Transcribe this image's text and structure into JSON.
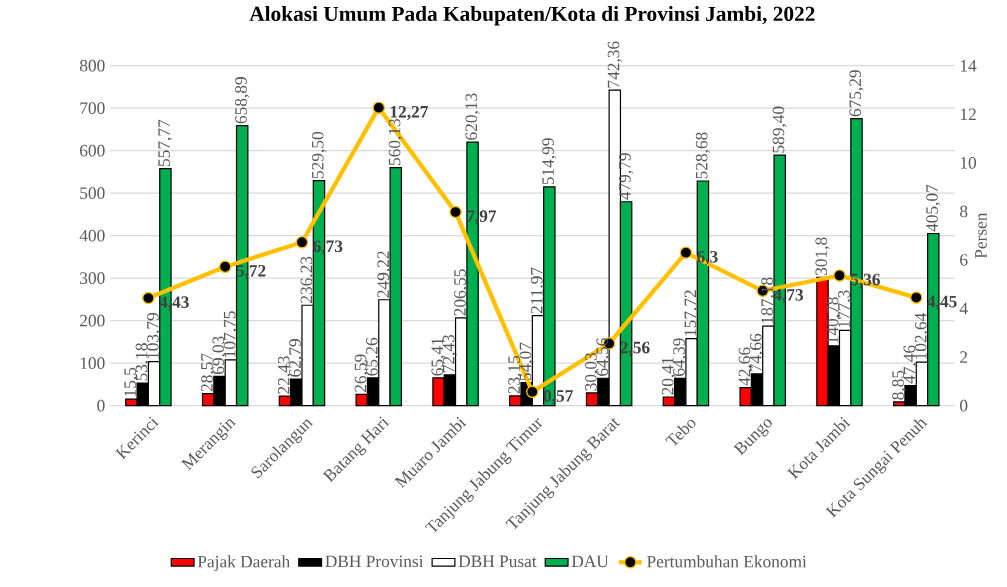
{
  "chart_data": {
    "type": "bar",
    "title": "Alokasi Umum Pada Kabupaten/Kota di Provinsi Jambi, 2022",
    "y2label": "Persen",
    "categories": [
      "Kerinci",
      "Merangin",
      "Sarolangun",
      "Batang Hari",
      "Muaro Jambi",
      "Tanjung Jabung Timur",
      "Tanjung Jabung Barat",
      "Tebo",
      "Bungo",
      "Kota Jambi",
      "Kota Sungai Penuh"
    ],
    "series": [
      {
        "name": "Pajak Daerah",
        "color": "#ff0000",
        "values": [
          15.5,
          28.57,
          22.43,
          26.59,
          65.41,
          23.15,
          30.03,
          20.41,
          42.66,
          301.8,
          8.85
        ],
        "value_labels": [
          "15,5",
          "28,57",
          "22,43",
          "26,59",
          "65,41",
          "23,15",
          "30,03",
          "20,41",
          "42,66",
          "301,8",
          "8,85"
        ]
      },
      {
        "name": "DBH Provinsi",
        "color": "#000000",
        "values": [
          53.18,
          69.03,
          62.79,
          65.26,
          72.43,
          54.07,
          64.56,
          64.39,
          74.66,
          140.78,
          47.46
        ],
        "value_labels": [
          "53,18",
          "69,03",
          "62,79",
          "65,26",
          "72,43",
          "54,07",
          "64,56",
          "64,39",
          "74,66",
          "140,78",
          "47,46"
        ]
      },
      {
        "name": "DBH Pusat",
        "color": "#ffffff",
        "values": [
          103.79,
          107.75,
          236.23,
          249.22,
          206.55,
          211.97,
          742.36,
          157.72,
          187.18,
          177.3,
          102.64
        ],
        "value_labels": [
          "103,79",
          "107,75",
          "236,23",
          "249,22",
          "206,55",
          "211,97",
          "742,36",
          "157,72",
          "187,18",
          "177,3",
          "102,64"
        ]
      },
      {
        "name": "DAU",
        "color": "#00b050",
        "values": [
          557.77,
          658.89,
          529.5,
          560.13,
          620.13,
          514.99,
          479.79,
          528.68,
          589.4,
          675.29,
          405.07
        ],
        "value_labels": [
          "557,77",
          "658,89",
          "529,50",
          "560,13",
          "620,13",
          "514,99",
          "479,79",
          "528,68",
          "589,40",
          "675,29",
          "405,07"
        ]
      },
      {
        "name": "Pertumbuhan Ekonomi",
        "type": "line",
        "axis": "y2",
        "marker": "circle",
        "color": "#ffc000",
        "values": [
          4.43,
          5.72,
          6.73,
          12.27,
          7.97,
          0.57,
          2.56,
          6.3,
          4.73,
          5.36,
          4.45
        ],
        "value_labels": [
          "4,43",
          "5,72",
          "6,73",
          "12,27",
          "7,97",
          "0,57",
          "2,56",
          "6,3",
          "4,73",
          "5,36",
          "4,45"
        ]
      }
    ],
    "ylim": [
      0,
      800
    ],
    "yticks": [
      0,
      100,
      200,
      300,
      400,
      500,
      600,
      700,
      800
    ],
    "y2lim": [
      0,
      14
    ],
    "y2ticks": [
      0,
      2,
      4,
      6,
      8,
      10,
      12,
      14
    ],
    "grid": "y",
    "legend": "bottom"
  }
}
